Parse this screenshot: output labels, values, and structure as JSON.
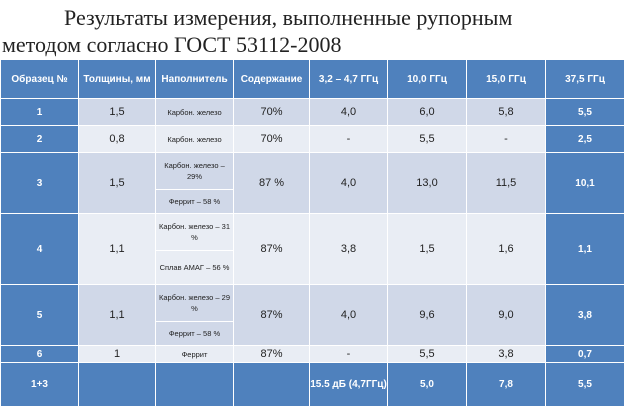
{
  "title": {
    "line1": "Результаты измерения, выполненные рупорным",
    "line2": "методом согласно ГОСТ 53112-2008"
  },
  "table": {
    "headers": [
      "Образец №",
      "Толщины, мм",
      "Наполнитель",
      "Содержание",
      "3,2 – 4,7 ГГц",
      "10,0 ГГц",
      "15,0 ГГц",
      "37,5 ГГц"
    ],
    "rows": [
      {
        "id": "1",
        "thickness": "1,5",
        "filler": [
          "Карбон. железо"
        ],
        "content": "70%",
        "f1": "4,0",
        "f2": "6,0",
        "f3": "5,8",
        "f4": "5,5"
      },
      {
        "id": "2",
        "thickness": "0,8",
        "filler": [
          "Карбон. железо"
        ],
        "content": "70%",
        "f1": "-",
        "f2": "5,5",
        "f3": "-",
        "f4": "2,5"
      },
      {
        "id": "3",
        "thickness": "1,5",
        "filler": [
          "Карбон. железо – 29%",
          "Феррит – 58 %"
        ],
        "content": "87 %",
        "f1": "4,0",
        "f2": "13,0",
        "f3": "11,5",
        "f4": "10,1"
      },
      {
        "id": "4",
        "thickness": "1,1",
        "filler": [
          "Карбон. железо – 31 %",
          "Сплав АМАГ – 56 %"
        ],
        "content": "87%",
        "f1": "3,8",
        "f2": "1,5",
        "f3": "1,6",
        "f4": "1,1"
      },
      {
        "id": "5",
        "thickness": "1,1",
        "filler": [
          "Карбон. железо – 29 %",
          "Феррит – 58 %"
        ],
        "content": "87%",
        "f1": "4,0",
        "f2": "9,6",
        "f3": "9,0",
        "f4": "3,8"
      },
      {
        "id": "6",
        "thickness": "1",
        "filler": [
          "Феррит"
        ],
        "content": "87%",
        "f1": "-",
        "f2": "5,5",
        "f3": "3,8",
        "f4": "0,7"
      },
      {
        "id": "1+3",
        "thickness": "",
        "filler": [
          ""
        ],
        "content": "",
        "f1": "15.5 дБ (4,7ГГц)",
        "f2": "5,0",
        "f3": "7,8",
        "f4": "5,5"
      }
    ]
  }
}
